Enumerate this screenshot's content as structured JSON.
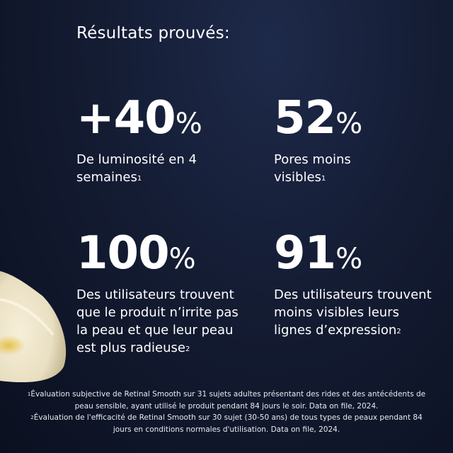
{
  "title": "Résultats prouvés:",
  "stats": [
    {
      "value": "+40",
      "unit": "%",
      "label": "De luminosité en 4 semaines",
      "note": "1"
    },
    {
      "value": "52",
      "unit": "%",
      "label": "Pores moins visibles",
      "note": "1"
    },
    {
      "value": "100",
      "unit": "%",
      "label": "Des utilisateurs trouvent que le produit n’irrite pas la peau et que leur peau est plus radieuse",
      "note": "2"
    },
    {
      "value": "91",
      "unit": "%",
      "label": "Des utilisateurs trouvent moins visibles leurs lignes d’expression",
      "note": "2"
    }
  ],
  "footnotes": [
    {
      "mark": "1",
      "text": "Évaluation subjective de Retinal Smooth sur 31 sujets adultes présentant des rides et des antécédents de peau sensible, ayant utilisé le produit pendant 84 jours le soir. Data on file, 2024."
    },
    {
      "mark": "2",
      "text": "Évaluation de l'efficacité de Retinal Smooth sur 30 sujet (30-50 ans) de tous types de peaux pendant 84 jours en conditions normales d'utilisation. Data on file, 2024."
    }
  ],
  "colors": {
    "background": "#141c33",
    "text": "#ffffff",
    "cream": "#efe6cc"
  }
}
